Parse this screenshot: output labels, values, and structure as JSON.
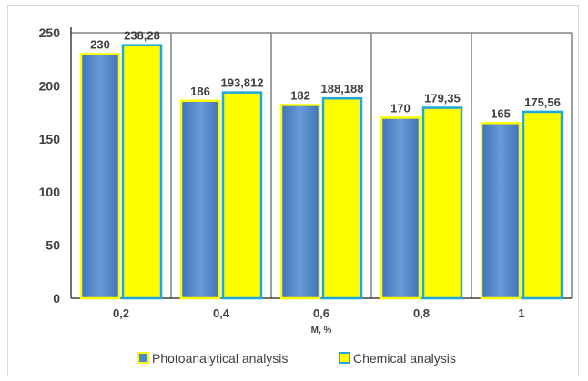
{
  "chart_data": {
    "type": "bar",
    "categories": [
      "0,2",
      "0,4",
      "0,6",
      "0,8",
      "1"
    ],
    "xlabel": "M, %",
    "ylabel": "",
    "title": "",
    "ylim": [
      0,
      250
    ],
    "yticks": [
      "0",
      "50",
      "100",
      "150",
      "200",
      "250"
    ],
    "grid": "vertical",
    "legend_position": "bottom",
    "series": [
      {
        "name": "Photoanalytical analysis",
        "values": [
          230,
          186,
          182,
          170,
          165
        ],
        "labels": [
          "230",
          "186",
          "182",
          "170",
          "165"
        ],
        "color": "#4f87c8",
        "outline": "#ffff00"
      },
      {
        "name": "Chemical analysis",
        "values": [
          238.28,
          193.812,
          188.188,
          179.35,
          175.56
        ],
        "labels": [
          "238,28",
          "193,812",
          "188,188",
          "179,35",
          "175,56"
        ],
        "color": "#ffff00",
        "outline": "#1fa7e0"
      }
    ]
  }
}
